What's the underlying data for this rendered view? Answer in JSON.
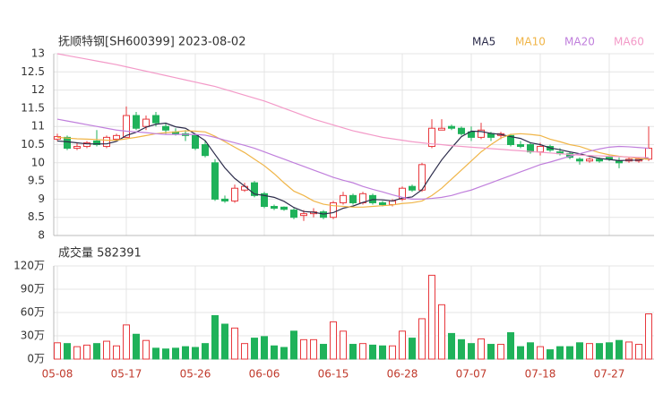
{
  "chart_data": [
    {
      "type": "candlestick",
      "title": "抚顺特钢[SH600399] 2023-08-02",
      "categories": [
        "05-08",
        null,
        null,
        null,
        null,
        null,
        null,
        "05-17",
        null,
        null,
        null,
        null,
        null,
        null,
        "05-26",
        null,
        null,
        null,
        null,
        null,
        null,
        "06-06",
        null,
        null,
        null,
        null,
        null,
        null,
        "06-15",
        null,
        null,
        null,
        null,
        null,
        null,
        "06-28",
        null,
        null,
        null,
        null,
        null,
        null,
        "07-07",
        null,
        null,
        null,
        null,
        null,
        null,
        "07-18",
        null,
        null,
        null,
        null,
        null,
        null,
        "07-27",
        null,
        null,
        null,
        null
      ],
      "open": [
        10.65,
        10.7,
        10.4,
        10.45,
        10.6,
        10.45,
        10.65,
        10.7,
        11.3,
        11.0,
        11.3,
        11.0,
        10.85,
        10.8,
        10.75,
        10.5,
        10.0,
        9.0,
        8.95,
        9.25,
        9.45,
        9.15,
        8.8,
        8.78,
        8.7,
        8.55,
        8.6,
        8.65,
        8.5,
        8.9,
        9.1,
        8.9,
        9.1,
        8.9,
        8.85,
        9.0,
        9.35,
        9.25,
        10.45,
        10.9,
        11.0,
        10.95,
        10.85,
        10.7,
        10.8,
        10.75,
        10.75,
        10.5,
        10.5,
        10.3,
        10.45,
        10.3,
        10.25,
        10.1,
        10.05,
        10.1,
        10.15,
        10.05,
        10.05,
        10.05,
        10.1
      ],
      "high": [
        10.8,
        10.75,
        10.55,
        10.6,
        10.9,
        10.75,
        10.8,
        11.55,
        11.4,
        11.3,
        11.4,
        11.1,
        10.95,
        10.9,
        10.8,
        10.6,
        10.1,
        9.1,
        9.4,
        9.45,
        9.5,
        9.2,
        8.85,
        8.8,
        8.75,
        8.7,
        8.75,
        8.7,
        8.95,
        9.2,
        9.15,
        9.2,
        9.15,
        8.95,
        9.0,
        9.35,
        9.4,
        10.0,
        11.2,
        11.2,
        11.05,
        11.0,
        11.0,
        11.1,
        10.85,
        10.85,
        10.8,
        10.6,
        10.55,
        10.55,
        10.5,
        10.4,
        10.3,
        10.15,
        10.15,
        10.15,
        10.2,
        10.15,
        10.15,
        10.15,
        11.0
      ],
      "low": [
        10.6,
        10.35,
        10.35,
        10.4,
        10.45,
        10.4,
        10.6,
        10.7,
        10.9,
        10.9,
        11.0,
        10.8,
        10.75,
        10.6,
        10.35,
        10.15,
        8.95,
        8.9,
        8.9,
        9.2,
        9.05,
        8.75,
        8.7,
        8.68,
        8.45,
        8.4,
        8.5,
        8.45,
        8.45,
        8.85,
        8.85,
        8.85,
        8.85,
        8.8,
        8.8,
        8.95,
        9.2,
        9.2,
        10.4,
        10.9,
        10.9,
        10.75,
        10.6,
        10.65,
        10.6,
        10.65,
        10.45,
        10.4,
        10.25,
        10.2,
        10.3,
        10.2,
        10.1,
        9.95,
        10.0,
        10.0,
        10.05,
        9.85,
        10.0,
        10.0,
        10.05
      ],
      "close": [
        10.72,
        10.4,
        10.45,
        10.55,
        10.5,
        10.7,
        10.75,
        11.3,
        10.95,
        11.2,
        11.1,
        10.9,
        10.8,
        10.75,
        10.4,
        10.2,
        9.0,
        8.95,
        9.3,
        9.35,
        9.1,
        8.8,
        8.75,
        8.72,
        8.5,
        8.6,
        8.65,
        8.5,
        8.9,
        9.1,
        8.9,
        9.15,
        8.9,
        8.85,
        8.95,
        9.3,
        9.25,
        9.95,
        10.95,
        10.95,
        10.95,
        10.8,
        10.7,
        10.9,
        10.7,
        10.8,
        10.5,
        10.45,
        10.3,
        10.45,
        10.35,
        10.25,
        10.15,
        10.05,
        10.1,
        10.05,
        10.1,
        10.0,
        10.1,
        10.1,
        10.4
      ],
      "up_color": "#e8383d",
      "down_color": "#1fb25a",
      "series": [
        {
          "name": "MA5",
          "color": "#2b2b4a",
          "values": [
            10.6,
            10.58,
            10.55,
            10.52,
            10.52,
            10.52,
            10.59,
            10.75,
            10.84,
            10.98,
            11.06,
            11.09,
            10.99,
            10.95,
            10.79,
            10.61,
            10.23,
            9.86,
            9.57,
            9.36,
            9.14,
            9.1,
            9.05,
            8.94,
            8.77,
            8.66,
            8.64,
            8.59,
            8.63,
            8.75,
            8.81,
            8.91,
            8.99,
            8.98,
            8.95,
            9.03,
            9.06,
            9.26,
            9.68,
            10.08,
            10.41,
            10.72,
            10.87,
            10.86,
            10.81,
            10.78,
            10.72,
            10.67,
            10.55,
            10.5,
            10.41,
            10.36,
            10.3,
            10.25,
            10.18,
            10.12,
            10.09,
            10.06,
            10.07,
            10.07,
            10.14
          ]
        },
        {
          "name": "MA10",
          "color": "#f0b548",
          "values": [
            10.7,
            10.68,
            10.66,
            10.65,
            10.64,
            10.62,
            10.62,
            10.66,
            10.7,
            10.75,
            10.8,
            10.83,
            10.85,
            10.88,
            10.87,
            10.85,
            10.73,
            10.58,
            10.43,
            10.28,
            10.1,
            9.92,
            9.7,
            9.45,
            9.22,
            9.1,
            8.95,
            8.86,
            8.82,
            8.8,
            8.78,
            8.78,
            8.8,
            8.82,
            8.84,
            8.88,
            8.9,
            8.95,
            9.1,
            9.3,
            9.55,
            9.8,
            10.05,
            10.3,
            10.5,
            10.68,
            10.78,
            10.8,
            10.78,
            10.75,
            10.65,
            10.58,
            10.5,
            10.45,
            10.36,
            10.28,
            10.22,
            10.18,
            10.15,
            10.12,
            10.1
          ]
        },
        {
          "name": "MA20",
          "color": "#c07fdc",
          "values": [
            11.2,
            11.15,
            11.1,
            11.05,
            11.0,
            10.95,
            10.9,
            10.87,
            10.85,
            10.83,
            10.8,
            10.78,
            10.78,
            10.78,
            10.78,
            10.76,
            10.7,
            10.62,
            10.55,
            10.48,
            10.4,
            10.3,
            10.2,
            10.1,
            10.0,
            9.9,
            9.8,
            9.7,
            9.6,
            9.52,
            9.45,
            9.35,
            9.27,
            9.2,
            9.12,
            9.05,
            9.0,
            9.0,
            9.02,
            9.05,
            9.1,
            9.18,
            9.25,
            9.35,
            9.45,
            9.55,
            9.65,
            9.75,
            9.85,
            9.95,
            10.02,
            10.1,
            10.18,
            10.25,
            10.32,
            10.38,
            10.43,
            10.45,
            10.44,
            10.42,
            10.4
          ]
        },
        {
          "name": "MA60",
          "color": "#f39ac8",
          "values": [
            13.0,
            12.95,
            12.9,
            12.85,
            12.8,
            12.75,
            12.7,
            12.64,
            12.58,
            12.52,
            12.46,
            12.4,
            12.34,
            12.28,
            12.22,
            12.16,
            12.1,
            12.02,
            11.94,
            11.86,
            11.78,
            11.7,
            11.6,
            11.5,
            11.4,
            11.3,
            11.2,
            11.12,
            11.04,
            10.96,
            10.88,
            10.82,
            10.76,
            10.7,
            10.66,
            10.62,
            10.58,
            10.55,
            10.52,
            10.5,
            10.47,
            10.45,
            10.43,
            10.41,
            10.39,
            10.37,
            10.35,
            10.33,
            10.31,
            10.29,
            10.27,
            10.25,
            10.23,
            10.21,
            10.2,
            10.19,
            10.18,
            10.17,
            10.16,
            10.15,
            10.14
          ]
        }
      ],
      "ylim": [
        8,
        13
      ],
      "yticks": [
        8,
        8.5,
        9,
        9.5,
        10,
        10.5,
        11,
        11.5,
        12,
        12.5,
        13
      ],
      "grid": true
    },
    {
      "type": "bar",
      "title": "成交量 582391",
      "values": [
        21,
        20,
        16,
        18,
        20,
        23,
        17,
        44,
        32,
        24,
        14,
        13,
        14,
        16,
        15,
        20,
        56,
        45,
        40,
        20,
        27,
        29,
        17,
        15,
        36,
        25,
        25,
        19,
        48,
        36,
        19,
        20,
        18,
        17,
        17,
        36,
        27,
        52,
        108,
        70,
        33,
        25,
        20,
        26,
        19,
        19,
        34,
        16,
        21,
        16,
        12,
        16,
        16,
        21,
        20,
        20,
        21,
        24,
        22,
        19,
        58.24
      ],
      "ylim": [
        0,
        120
      ],
      "yticks": [
        {
          "value": 0,
          "label": "0万"
        },
        {
          "value": 30,
          "label": "30万"
        },
        {
          "value": 60,
          "label": "60万"
        },
        {
          "value": 90,
          "label": "90万"
        },
        {
          "value": 120,
          "label": "120万"
        }
      ],
      "grid": true
    }
  ]
}
